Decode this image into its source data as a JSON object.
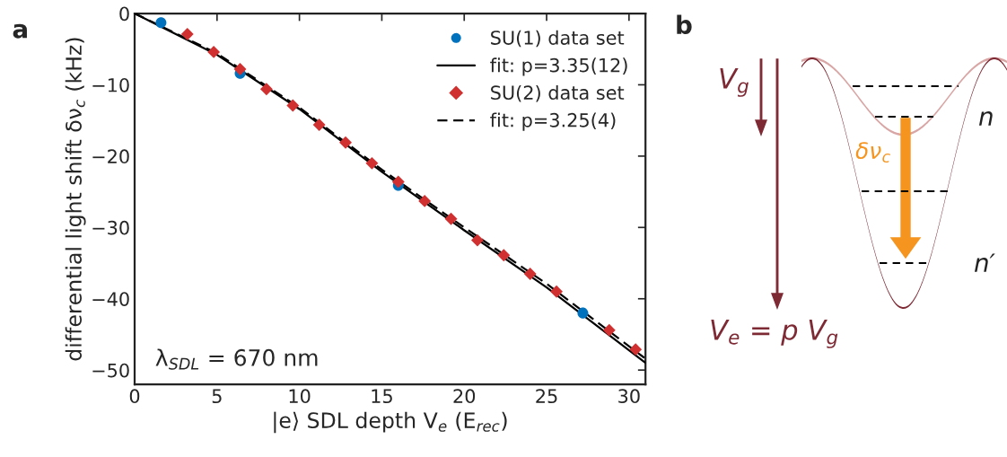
{
  "chart_data": [
    {
      "type": "scatter",
      "title": "a",
      "xlabel": "|e⟩ SDL depth V$_{e}$ (E$_{rec}$)",
      "ylabel": "differential light shift δν$_{c}$ (kHz)",
      "xlim": [
        0,
        31
      ],
      "xticks": [
        0,
        5,
        10,
        15,
        20,
        25,
        30
      ],
      "ylim": [
        -52,
        0
      ],
      "yticks": [
        -50,
        -40,
        -30,
        -20,
        -10,
        0
      ],
      "grid": false,
      "legend": "top right",
      "annotations": [
        "λ$_{SDL}$ = 670 nm"
      ],
      "series": [
        {
          "name": "SU(1) data set",
          "type": "scatter",
          "marker": "circle",
          "color": "#0072bd",
          "x": [
            1.6,
            6.4,
            16.0,
            27.2
          ],
          "values": [
            -1.3,
            -8.4,
            -24.1,
            -42.0
          ]
        },
        {
          "name": "fit: p=3.35(12)",
          "type": "line",
          "line_style": "solid",
          "color": "#000000",
          "x": [
            0,
            5,
            10,
            15,
            20,
            25,
            31
          ],
          "values": [
            0,
            -5.8,
            -13.4,
            -22.2,
            -30.4,
            -38.4,
            -49.0
          ]
        },
        {
          "name": "SU(2) data set",
          "type": "scatter",
          "marker": "diamond",
          "color": "#d03030",
          "x": [
            3.2,
            4.8,
            6.4,
            8.0,
            9.6,
            11.2,
            12.8,
            14.4,
            16.0,
            17.6,
            19.2,
            20.8,
            22.4,
            24.0,
            25.6,
            28.8,
            30.4
          ],
          "values": [
            -2.9,
            -5.4,
            -7.8,
            -10.6,
            -12.9,
            -15.6,
            -18.1,
            -21.0,
            -23.6,
            -26.3,
            -28.8,
            -31.8,
            -33.9,
            -36.5,
            -39.0,
            -44.4,
            -47.1
          ]
        },
        {
          "name": "fit: p=3.25(4)",
          "type": "line",
          "line_style": "dashed",
          "color": "#000000",
          "x": [
            0,
            5,
            10,
            15,
            20,
            25,
            31
          ],
          "values": [
            0,
            -5.6,
            -13.2,
            -21.9,
            -30.0,
            -37.9,
            -48.4
          ]
        }
      ]
    },
    {
      "type": "other",
      "title": "b",
      "annotations": [
        "V$_{g}$",
        "n",
        "δν$_{c}$",
        "n′",
        "V$_{e}$ = p V$_{g}$"
      ]
    }
  ]
}
